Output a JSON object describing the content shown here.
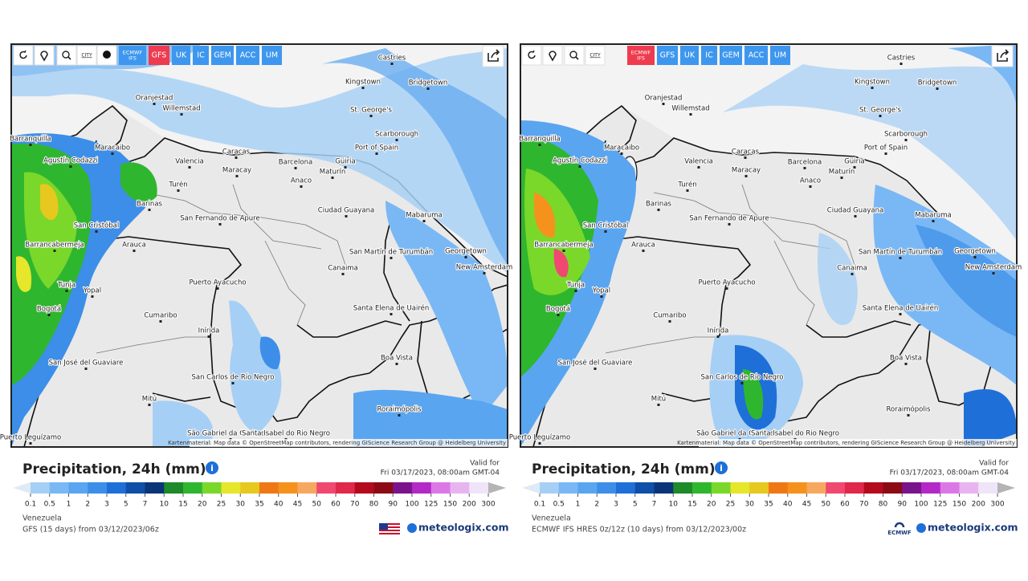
{
  "toolbar": {
    "city": "CITY",
    "models": [
      "ECMWF IFS",
      "GFS",
      "UK",
      "IC",
      "GEM",
      "ACC",
      "UM"
    ]
  },
  "map_labels": [
    "Castries",
    "Kingstown",
    "Bridgetown",
    "Oranjestad",
    "Willemstad",
    "St. George's",
    "Barranquilla",
    "Maracaibo",
    "Scarborough",
    "Port of Spain",
    "Caracas",
    "Valencia",
    "Barcelona",
    "Güiria",
    "Maracay",
    "Maturín",
    "Agustín Codazzi",
    "Turén",
    "Anaco",
    "Barinas",
    "Ciudad Guayana",
    "Mabaruma",
    "San Fernando de Apure",
    "San Cristóbal",
    "Barrancabermeja",
    "Arauca",
    "San Martín de Turumbán",
    "Georgetown",
    "New Amsterdam",
    "Canaima",
    "Tunja",
    "Puerto Ayacucho",
    "Yopal",
    "Bogotá",
    "Santa Elena de Uairén",
    "Cumaribo",
    "Inírida",
    "Boa Vista",
    "San José del Guaviare",
    "San Carlos de Río Negro",
    "Mitú",
    "Roraimópolis",
    "São Gabriel da Cachoeira",
    "Santa Isabel do Rio Negro",
    "Puerto Leguízamo"
  ],
  "attribution": "Kartenmaterial: Map data © OpenStreetMap contributors, rendering GIScience Research Group @ Heidelberg University",
  "legend": {
    "title": "Precipitation, 24h (mm)",
    "valid_label": "Valid for",
    "valid_time": "Fri 03/17/2023, 08:00am GMT-04",
    "region": "Venezuela",
    "scale": [
      0.1,
      0.5,
      1,
      2,
      3,
      5,
      7,
      10,
      15,
      20,
      25,
      30,
      35,
      40,
      45,
      50,
      60,
      70,
      80,
      90,
      100,
      125,
      150,
      200,
      300
    ],
    "scale_colors": [
      "#dfeaf6",
      "#a6cff5",
      "#7ab8f5",
      "#5aa5f0",
      "#3c8ee8",
      "#1f6fd8",
      "#0f4fa8",
      "#0a3578",
      "#1e8a2a",
      "#2fb62f",
      "#7ad82a",
      "#e6e62a",
      "#e6c81e",
      "#f07814",
      "#f5921e",
      "#f7a860",
      "#f04870",
      "#e0284a",
      "#b40a1e",
      "#8c0a14",
      "#7a148c",
      "#b428c8",
      "#dc78e6",
      "#e8b4f0",
      "#f0e4f8",
      "#b4b4b4"
    ],
    "brand": "meteologix.com"
  },
  "panels": [
    {
      "active_model": 1,
      "dot_button": true,
      "model_info": "GFS (15 days) from 03/12/2023/06z"
    },
    {
      "active_model": 0,
      "dot_button": false,
      "model_info": "ECMWF IFS HRES 0z/12z (10 days) from 03/12/2023/00z",
      "logo": "ECMWF"
    }
  ]
}
